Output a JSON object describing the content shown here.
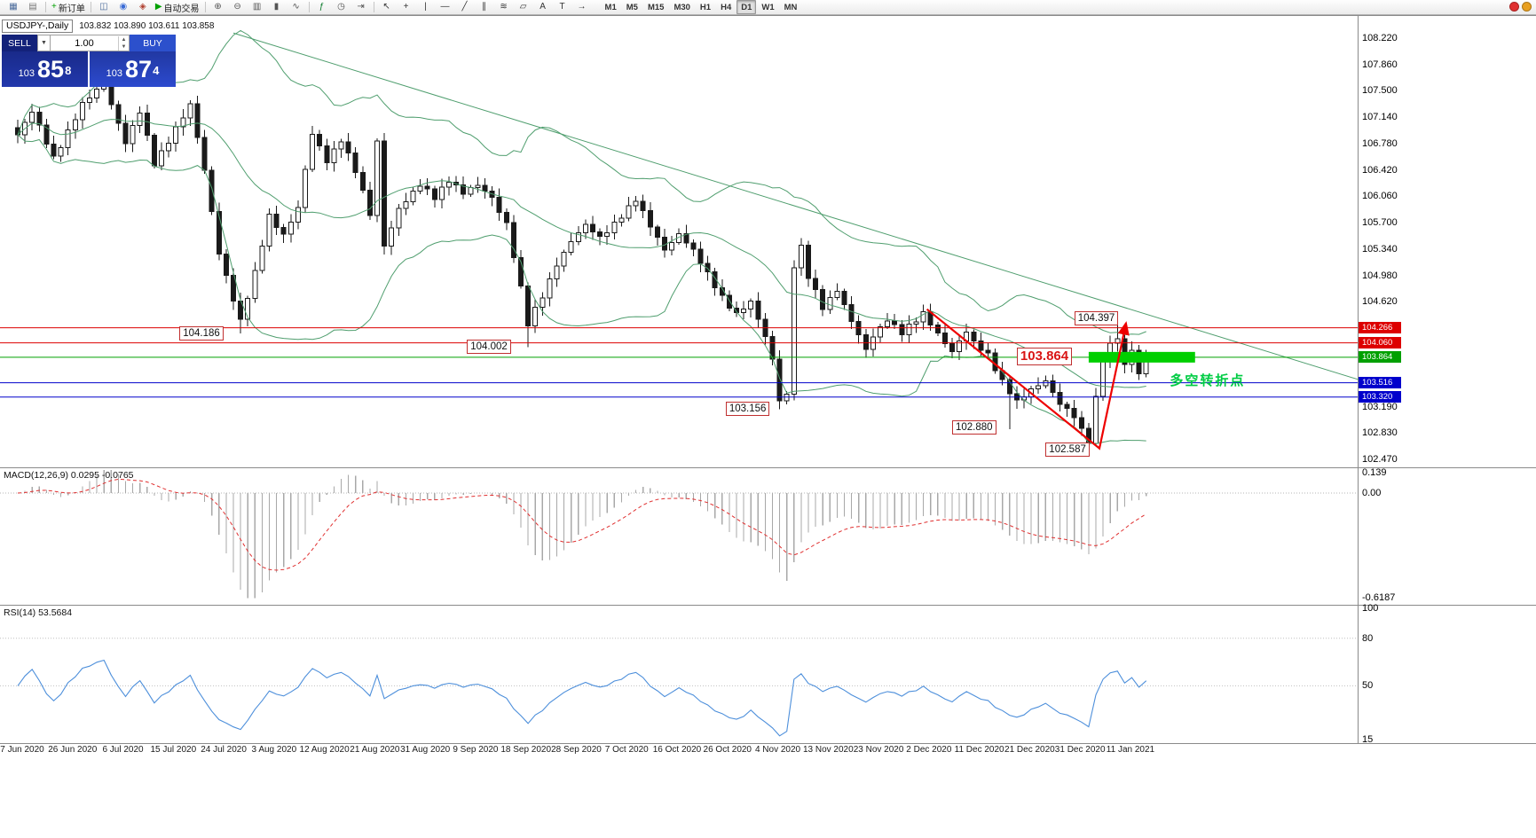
{
  "window": {
    "title": "USDJPY-,Daily",
    "ohlc": "103.832 103.890 103.611 103.858"
  },
  "toolbar": {
    "groups": [
      {
        "items": [
          {
            "name": "new-chart",
            "glyph": "▦",
            "color": "#4a6a9a"
          },
          {
            "name": "profiles",
            "glyph": "▤",
            "color": "#777777"
          }
        ]
      },
      {
        "items": [
          {
            "name": "new-order",
            "glyph": "+",
            "color": "#00a000",
            "label": "新订单"
          }
        ]
      },
      {
        "items": [
          {
            "name": "market-watch",
            "glyph": "◫",
            "color": "#4a6a9a"
          },
          {
            "name": "data-window",
            "glyph": "◉",
            "color": "#3a6bd6"
          },
          {
            "name": "navigator",
            "glyph": "◈",
            "color": "#b04030"
          },
          {
            "name": "autotrading",
            "glyph": "▶",
            "color": "#00a000",
            "label": "自动交易"
          }
        ]
      },
      {
        "items": [
          {
            "name": "zoom-in",
            "glyph": "⊕",
            "color": "#555555"
          },
          {
            "name": "zoom-out",
            "glyph": "⊖",
            "color": "#555555"
          },
          {
            "name": "bar-chart",
            "glyph": "▥",
            "color": "#555555"
          },
          {
            "name": "candle-chart",
            "glyph": "▮",
            "color": "#555555"
          },
          {
            "name": "line-chart",
            "glyph": "∿",
            "color": "#555555"
          }
        ]
      },
      {
        "items": [
          {
            "name": "indicators",
            "glyph": "ƒ",
            "color": "#0a7a2a"
          },
          {
            "name": "auto-scroll",
            "glyph": "◷",
            "color": "#555555"
          },
          {
            "name": "chart-shift",
            "glyph": "⇥",
            "color": "#555555"
          }
        ]
      },
      {
        "items": [
          {
            "name": "cursor",
            "glyph": "↖",
            "color": "#333333"
          },
          {
            "name": "crosshair",
            "glyph": "+",
            "color": "#333333"
          },
          {
            "name": "vertical-line",
            "glyph": "|",
            "color": "#333333"
          },
          {
            "name": "horizontal-line",
            "glyph": "—",
            "color": "#333333"
          },
          {
            "name": "trendline",
            "glyph": "╱",
            "color": "#333333"
          },
          {
            "name": "channel",
            "glyph": "∥",
            "color": "#333333"
          },
          {
            "name": "fibonacci",
            "glyph": "≋",
            "color": "#333333"
          },
          {
            "name": "shapes",
            "glyph": "▱",
            "color": "#333333"
          },
          {
            "name": "text",
            "glyph": "A",
            "color": "#333333"
          },
          {
            "name": "text-label",
            "glyph": "T",
            "color": "#333333"
          },
          {
            "name": "arrow-tool",
            "glyph": "→",
            "color": "#333333"
          }
        ]
      }
    ],
    "timeframes": [
      "M1",
      "M5",
      "M15",
      "M30",
      "H1",
      "H4",
      "D1",
      "W1",
      "MN"
    ],
    "active_timeframe": "D1",
    "right_icons": [
      {
        "name": "alert",
        "color": "#e03030"
      },
      {
        "name": "news",
        "color": "#e8a020"
      }
    ]
  },
  "trade_panel": {
    "sell_label": "SELL",
    "buy_label": "BUY",
    "volume": "1.00",
    "bid": {
      "prefix": "103",
      "big": "85",
      "sup": "8"
    },
    "ask": {
      "prefix": "103",
      "big": "87",
      "sup": "4"
    }
  },
  "chart_data": {
    "type": "candlestick",
    "symbol": "USDJPY-",
    "timeframe": "Daily",
    "num_candles": 158,
    "close_anchors": [
      [
        0,
        106.9
      ],
      [
        2,
        107.2
      ],
      [
        5,
        106.6
      ],
      [
        9,
        107.3
      ],
      [
        12,
        107.6
      ],
      [
        15,
        106.8
      ],
      [
        17,
        107.2
      ],
      [
        19,
        106.5
      ],
      [
        22,
        107.0
      ],
      [
        24,
        107.3
      ],
      [
        26,
        106.4
      ],
      [
        28,
        105.3
      ],
      [
        31,
        104.35
      ],
      [
        33,
        105.0
      ],
      [
        35,
        105.8
      ],
      [
        37,
        105.55
      ],
      [
        39,
        105.9
      ],
      [
        41,
        106.9
      ],
      [
        43,
        106.55
      ],
      [
        45,
        106.85
      ],
      [
        47,
        106.4
      ],
      [
        49,
        105.8
      ],
      [
        50,
        106.8
      ],
      [
        51,
        105.4
      ],
      [
        53,
        105.9
      ],
      [
        56,
        106.2
      ],
      [
        58,
        106.05
      ],
      [
        60,
        106.3
      ],
      [
        62,
        106.1
      ],
      [
        64,
        106.2
      ],
      [
        66,
        106.05
      ],
      [
        68,
        105.7
      ],
      [
        70,
        104.8
      ],
      [
        71,
        104.3
      ],
      [
        73,
        104.7
      ],
      [
        75,
        105.15
      ],
      [
        77,
        105.45
      ],
      [
        79,
        105.65
      ],
      [
        81,
        105.5
      ],
      [
        83,
        105.7
      ],
      [
        86,
        106.0
      ],
      [
        88,
        105.65
      ],
      [
        90,
        105.35
      ],
      [
        92,
        105.55
      ],
      [
        94,
        105.3
      ],
      [
        96,
        105.0
      ],
      [
        98,
        104.7
      ],
      [
        100,
        104.45
      ],
      [
        102,
        104.6
      ],
      [
        104,
        104.15
      ],
      [
        105,
        103.85
      ],
      [
        106,
        103.3
      ],
      [
        107,
        103.35
      ],
      [
        108,
        105.1
      ],
      [
        109,
        105.35
      ],
      [
        110,
        104.95
      ],
      [
        112,
        104.55
      ],
      [
        114,
        104.8
      ],
      [
        116,
        104.35
      ],
      [
        118,
        103.95
      ],
      [
        119,
        104.15
      ],
      [
        121,
        104.4
      ],
      [
        123,
        104.2
      ],
      [
        125,
        104.35
      ],
      [
        126,
        104.45
      ],
      [
        128,
        104.2
      ],
      [
        130,
        103.95
      ],
      [
        132,
        104.2
      ],
      [
        133,
        104.05
      ],
      [
        135,
        103.9
      ],
      [
        137,
        103.55
      ],
      [
        139,
        103.25
      ],
      [
        141,
        103.4
      ],
      [
        143,
        103.55
      ],
      [
        145,
        103.25
      ],
      [
        147,
        103.05
      ],
      [
        148,
        102.85
      ],
      [
        149,
        102.7
      ],
      [
        150,
        103.3
      ],
      [
        151,
        103.85
      ],
      [
        152,
        104.05
      ],
      [
        153,
        104.15
      ],
      [
        154,
        103.75
      ],
      [
        155,
        103.95
      ],
      [
        156,
        103.62
      ],
      [
        157,
        103.86
      ]
    ],
    "wick_overrides": [
      {
        "i": 31,
        "low": 104.186
      },
      {
        "i": 71,
        "low": 104.002
      },
      {
        "i": 106,
        "low": 103.156
      },
      {
        "i": 138,
        "low": 102.88
      },
      {
        "i": 149,
        "low": 102.587
      },
      {
        "i": 153,
        "high": 104.397
      }
    ],
    "bollinger": {
      "period": 20,
      "deviation": 2,
      "color": "#4f9e6e"
    },
    "trendline": {
      "i1": 30,
      "p1": 108.29,
      "i2": 186.5,
      "p2": 103.56,
      "color": "#4f9e6e"
    },
    "levels": [
      {
        "price": 104.266,
        "color": "#dd0000",
        "label": "104.266"
      },
      {
        "price": 104.06,
        "color": "#dd0000",
        "label": "104.060"
      },
      {
        "price": 103.864,
        "color": "#00a000",
        "label": "103.864"
      },
      {
        "price": 103.516,
        "color": "#0000cc",
        "label": "103.516"
      },
      {
        "price": 103.32,
        "color": "#0000cc",
        "label": "103.320"
      }
    ],
    "y_ticks": [
      "108.220",
      "107.860",
      "107.500",
      "107.140",
      "106.780",
      "106.420",
      "106.060",
      "105.700",
      "105.340",
      "104.980",
      "104.620",
      "103.190",
      "102.830",
      "102.470"
    ],
    "x_labels": [
      "7 Jun 2020",
      "26 Jun 2020",
      "6 Jul 2020",
      "15 Jul 2020",
      "24 Jul 2020",
      "3 Aug 2020",
      "12 Aug 2020",
      "21 Aug 2020",
      "31 Aug 2020",
      "9 Sep 2020",
      "18 Sep 2020",
      "28 Sep 2020",
      "7 Oct 2020",
      "16 Oct 2020",
      "26 Oct 2020",
      "4 Nov 2020",
      "13 Nov 2020",
      "23 Nov 2020",
      "2 Dec 2020",
      "11 Dec 2020",
      "21 Dec 2020",
      "31 Dec 2020",
      "11 Jan 2021"
    ],
    "price_callouts": [
      {
        "text": "104.186",
        "i": 22.5,
        "price": 104.186,
        "style": "small"
      },
      {
        "text": "104.002",
        "i": 62.5,
        "price": 104.002,
        "style": "small"
      },
      {
        "text": "103.156",
        "i": 98.5,
        "price": 103.156,
        "style": "small"
      },
      {
        "text": "102.880",
        "i": 130.0,
        "price": 102.9,
        "style": "small"
      },
      {
        "text": "102.587",
        "i": 143.0,
        "price": 102.6,
        "style": "small"
      },
      {
        "text": "104.397",
        "i": 147.0,
        "price": 104.397,
        "style": "small"
      },
      {
        "text": "103.864",
        "i": 139.0,
        "price": 103.88,
        "style": "big"
      }
    ],
    "zigzag": {
      "points": [
        [
          126.5,
          104.52
        ],
        [
          150.5,
          102.62
        ],
        [
          154.2,
          104.33
        ]
      ],
      "color": "#ee0000"
    },
    "highlight_bar": {
      "i1": 149.0,
      "i2": 163.8,
      "price": 103.864,
      "color": "#00cf00"
    },
    "annotation": {
      "text": "多空转折点",
      "i": 160.3,
      "price": 103.57,
      "color": "#00cc44"
    },
    "macd": {
      "label": "MACD(12,26,9) 0.0295 -0.0765",
      "fast": 12,
      "slow": 26,
      "signal": 9,
      "axis": [
        "0.139",
        "0.00",
        "-0.6187"
      ],
      "histogram_color": "#a8a8a8",
      "signal_color": "#e03030"
    },
    "rsi": {
      "label": "RSI(14) 53.5684",
      "period": 14,
      "value": 53.5684,
      "axis": [
        "100",
        "80",
        "50",
        "15"
      ],
      "line_color": "#4d8fdb"
    }
  }
}
